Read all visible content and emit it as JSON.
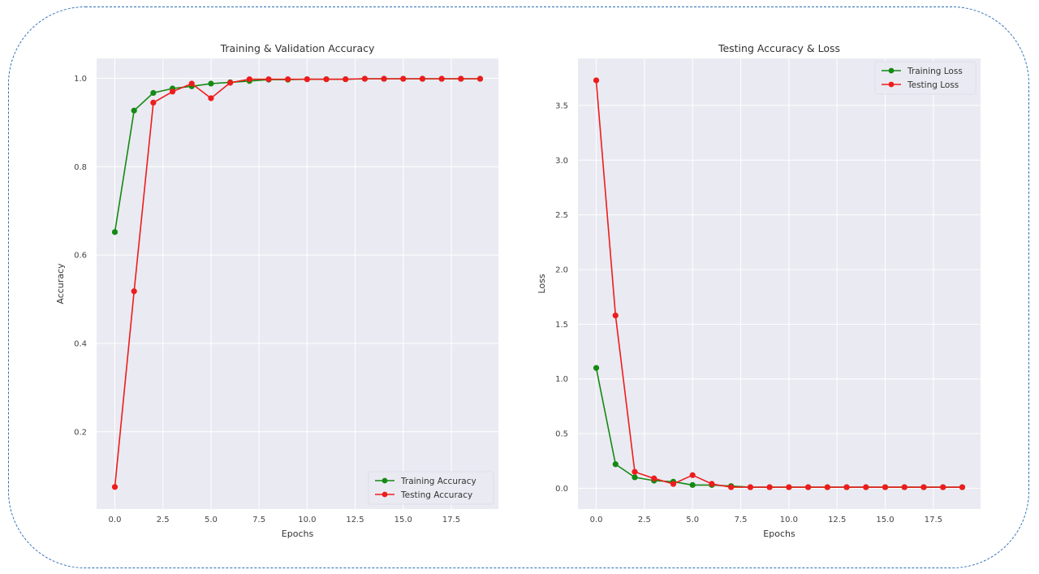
{
  "frame_color": "#2f6fb6",
  "chart_data": [
    {
      "type": "line",
      "title": "Training & Validation Accuracy",
      "xlabel": "Epochs",
      "ylabel": "Accuracy",
      "xlim": [
        -0.95,
        19.95
      ],
      "ylim": [
        0.025,
        1.045
      ],
      "xticks": [
        0.0,
        2.5,
        5.0,
        7.5,
        10.0,
        12.5,
        15.0,
        17.5
      ],
      "xtick_labels": [
        "0.0",
        "2.5",
        "5.0",
        "7.5",
        "10.0",
        "12.5",
        "15.0",
        "17.5"
      ],
      "yticks": [
        0.2,
        0.4,
        0.6,
        0.8,
        1.0
      ],
      "ytick_labels": [
        "0.2",
        "0.4",
        "0.6",
        "0.8",
        "1.0"
      ],
      "grid": true,
      "legend_position": "lower-right",
      "x": [
        0,
        1,
        2,
        3,
        4,
        5,
        6,
        7,
        8,
        9,
        10,
        11,
        12,
        13,
        14,
        15,
        16,
        17,
        18,
        19
      ],
      "series": [
        {
          "name": "Training Accuracy",
          "color": "#138a13",
          "values": [
            0.652,
            0.927,
            0.967,
            0.977,
            0.982,
            0.988,
            0.991,
            0.994,
            0.997,
            0.997,
            0.998,
            0.998,
            0.998,
            0.999,
            0.999,
            0.999,
            0.999,
            0.999,
            0.999,
            0.999
          ]
        },
        {
          "name": "Testing Accuracy",
          "color": "#ee1c1c",
          "values": [
            0.075,
            0.518,
            0.945,
            0.97,
            0.988,
            0.955,
            0.99,
            0.998,
            0.998,
            0.998,
            0.998,
            0.998,
            0.998,
            0.999,
            0.999,
            0.999,
            0.999,
            0.999,
            0.999,
            0.999
          ]
        }
      ]
    },
    {
      "type": "line",
      "title": "Testing Accuracy & Loss",
      "xlabel": "Epochs",
      "ylabel": "Loss",
      "xlim": [
        -0.95,
        19.95
      ],
      "ylim": [
        -0.19,
        3.93
      ],
      "xticks": [
        0.0,
        2.5,
        5.0,
        7.5,
        10.0,
        12.5,
        15.0,
        17.5
      ],
      "xtick_labels": [
        "0.0",
        "2.5",
        "5.0",
        "7.5",
        "10.0",
        "12.5",
        "15.0",
        "17.5"
      ],
      "yticks": [
        0.0,
        0.5,
        1.0,
        1.5,
        2.0,
        2.5,
        3.0,
        3.5
      ],
      "ytick_labels": [
        "0.0",
        "0.5",
        "1.0",
        "1.5",
        "2.0",
        "2.5",
        "3.0",
        "3.5"
      ],
      "grid": true,
      "legend_position": "upper-right",
      "x": [
        0,
        1,
        2,
        3,
        4,
        5,
        6,
        7,
        8,
        9,
        10,
        11,
        12,
        13,
        14,
        15,
        16,
        17,
        18,
        19
      ],
      "series": [
        {
          "name": "Training Loss",
          "color": "#138a13",
          "values": [
            1.1,
            0.22,
            0.1,
            0.07,
            0.06,
            0.03,
            0.03,
            0.02,
            0.01,
            0.01,
            0.01,
            0.01,
            0.01,
            0.01,
            0.01,
            0.01,
            0.01,
            0.01,
            0.01,
            0.01
          ]
        },
        {
          "name": "Testing Loss",
          "color": "#ee1c1c",
          "values": [
            3.73,
            1.58,
            0.15,
            0.09,
            0.04,
            0.12,
            0.04,
            0.01,
            0.01,
            0.01,
            0.01,
            0.01,
            0.01,
            0.01,
            0.01,
            0.01,
            0.01,
            0.01,
            0.01,
            0.01
          ]
        }
      ]
    }
  ]
}
